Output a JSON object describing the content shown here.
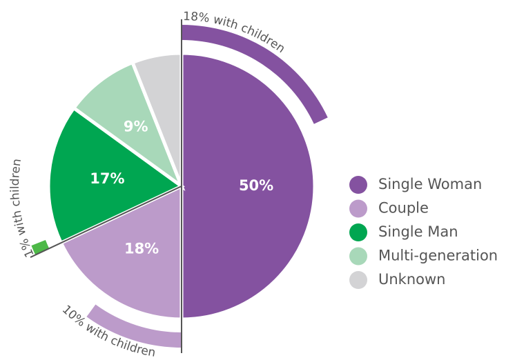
{
  "chart_data": {
    "type": "pie",
    "categories": [
      "Single Woman",
      "Couple",
      "Single Man",
      "Multi-generation",
      "Unknown"
    ],
    "values": [
      50,
      18,
      17,
      9,
      6
    ],
    "value_labels": [
      "50%",
      "18%",
      "17%",
      "9%",
      null
    ],
    "colors": [
      "#8452a0",
      "#bc9bca",
      "#00a651",
      "#a8d8b9",
      "#d3d3d5"
    ],
    "with_children": {
      "values": [
        18,
        10,
        1,
        null,
        null
      ],
      "labels": [
        "18% with children",
        "10% with children",
        "1% with children",
        null,
        null
      ],
      "colors": [
        "#8452a0",
        "#bc9bca",
        "#4db848",
        null,
        null
      ]
    },
    "legend": "right"
  }
}
